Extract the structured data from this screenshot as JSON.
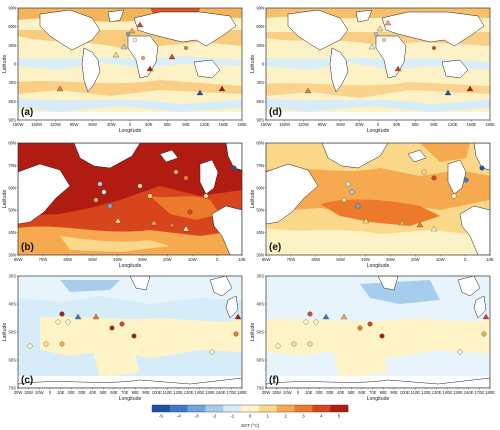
{
  "colorbar": {
    "label": "SST (°C)",
    "ticks": [
      "-5",
      "-4",
      "-3",
      "-2",
      "-1",
      "0",
      "1",
      "2",
      "3",
      "4",
      "5"
    ],
    "colors": [
      "#1f4fa8",
      "#3f78c8",
      "#6fa4dc",
      "#a7cdee",
      "#d6ecf8",
      "#fff4c8",
      "#fbd88a",
      "#f6a94e",
      "#ec7a2a",
      "#d8441c",
      "#b01c12"
    ]
  },
  "panels": [
    {
      "label": "(a)",
      "xlabel": "Longitude",
      "ylabel": "Latitude",
      "xticks": [
        "180W",
        "150W",
        "120W",
        "90W",
        "60W",
        "30W",
        "0",
        "30E",
        "60E",
        "90E",
        "120E",
        "150E",
        "180E"
      ],
      "yticks": [
        "90N",
        "60N",
        "30N",
        "0",
        "30S",
        "60S",
        "90S"
      ]
    },
    {
      "label": "(d)",
      "xlabel": "Longitude",
      "ylabel": "Latitude",
      "xticks": [
        "180W",
        "150W",
        "120W",
        "90W",
        "60W",
        "30W",
        "0",
        "30E",
        "60E",
        "90E",
        "120E",
        "150E",
        "180E"
      ],
      "yticks": [
        "90N",
        "60N",
        "30N",
        "0",
        "30S",
        "60S",
        "90S"
      ]
    },
    {
      "label": "(b)",
      "xlabel": "Longitude",
      "ylabel": "Latitude",
      "xticks": [
        "80W",
        "70W",
        "60W",
        "50W",
        "40W",
        "30W",
        "20W",
        "10W",
        "0",
        "10E"
      ],
      "yticks": [
        "80N",
        "70N",
        "60N",
        "50N",
        "40N",
        "30N"
      ]
    },
    {
      "label": "(e)",
      "xlabel": "Longitude",
      "ylabel": "Latitude",
      "xticks": [
        "80W",
        "70W",
        "60W",
        "50W",
        "40W",
        "30W",
        "20W",
        "10W",
        "0",
        "10E"
      ],
      "yticks": [
        "80N",
        "70N",
        "60N",
        "50N",
        "40N",
        "30N"
      ]
    },
    {
      "label": "(c)",
      "xlabel": "Longitude",
      "ylabel": "Latitude",
      "xticks": [
        "30W",
        "20W",
        "10W",
        "0",
        "10E",
        "20E",
        "30E",
        "40E",
        "50E",
        "60E",
        "70E",
        "80E",
        "90E",
        "100E",
        "110E",
        "120E",
        "130E",
        "140E",
        "150E",
        "160E",
        "170E",
        "180E"
      ],
      "yticks": [
        "30S",
        "40S",
        "50S",
        "60S",
        "70S"
      ]
    },
    {
      "label": "(f)",
      "xlabel": "Longitude",
      "ylabel": "Latitude",
      "xticks": [
        "30W",
        "20W",
        "10W",
        "0",
        "10E",
        "20E",
        "30E",
        "40E",
        "50E",
        "60E",
        "70E",
        "80E",
        "90E",
        "100E",
        "110E",
        "120E",
        "130E",
        "140E",
        "150E",
        "160E",
        "170E",
        "180E"
      ],
      "yticks": [
        "30S",
        "40S",
        "50S",
        "60S",
        "70S"
      ]
    }
  ]
}
